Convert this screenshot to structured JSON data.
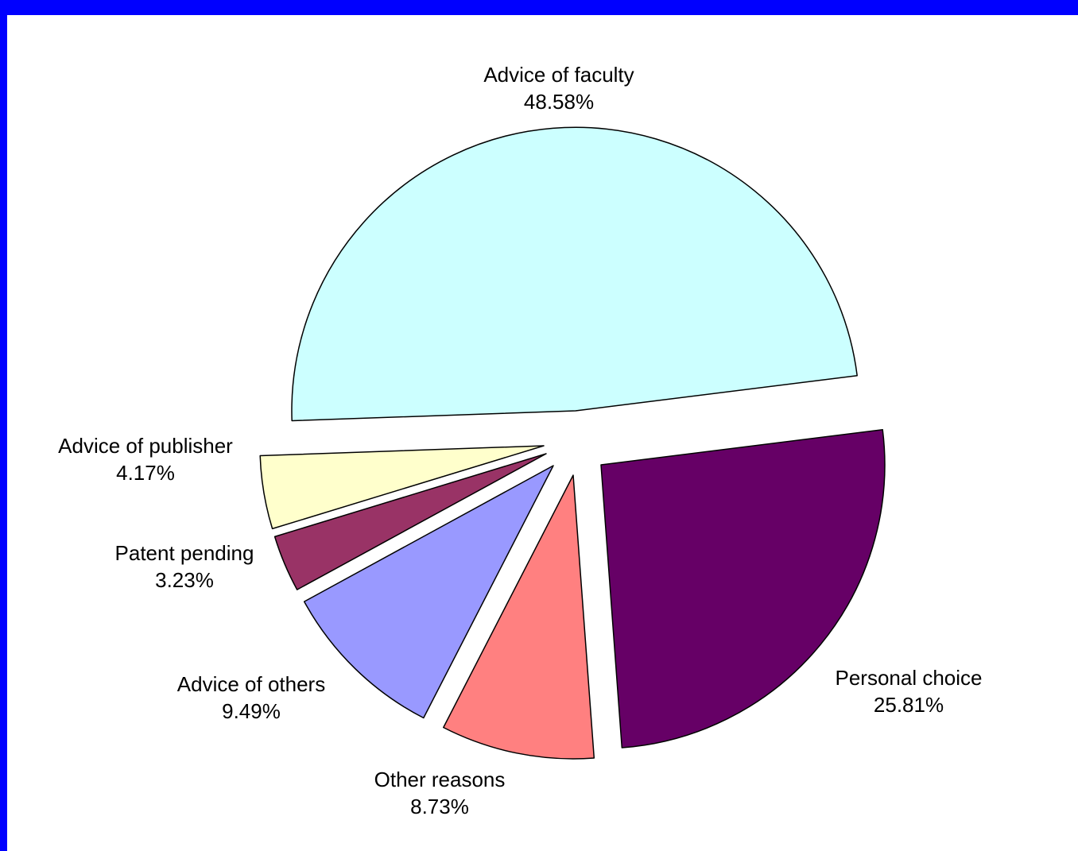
{
  "chart_data": {
    "type": "pie",
    "slices": [
      {
        "label": "Advice of faculty",
        "value": 48.58,
        "value_label": "48.58%",
        "color": "#ccffff"
      },
      {
        "label": "Personal choice",
        "value": 25.81,
        "value_label": "25.81%",
        "color": "#660066"
      },
      {
        "label": "Other reasons",
        "value": 8.73,
        "value_label": "8.73%",
        "color": "#ff8080"
      },
      {
        "label": "Advice of others",
        "value": 9.49,
        "value_label": "9.49%",
        "color": "#9999ff"
      },
      {
        "label": "Patent pending",
        "value": 3.23,
        "value_label": "3.23%",
        "color": "#993366"
      },
      {
        "label": "Advice of publisher",
        "value": 4.17,
        "value_label": "4.17%",
        "color": "#ffffcc"
      }
    ],
    "exploded": true,
    "legend": "none",
    "border_color": "#0000ff"
  }
}
